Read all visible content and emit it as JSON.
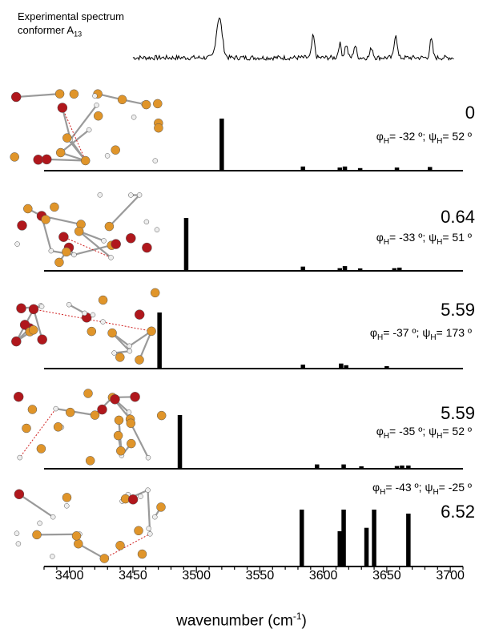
{
  "chart_data": {
    "type": "bar",
    "experimental": {
      "label_line1": "Experimental spectrum",
      "label_line2": "conformer A",
      "label_subscript": "13",
      "peaks": [
        {
          "x": 3518,
          "y": 1.0
        },
        {
          "x": 3592,
          "y": 0.55
        },
        {
          "x": 3613,
          "y": 0.35
        },
        {
          "x": 3618,
          "y": 0.32
        },
        {
          "x": 3625,
          "y": 0.3
        },
        {
          "x": 3638,
          "y": 0.25
        },
        {
          "x": 3657,
          "y": 0.6
        },
        {
          "x": 3685,
          "y": 0.45
        }
      ]
    },
    "panels": [
      {
        "energy": "0",
        "phi": "-32",
        "psi": "52",
        "bars": [
          {
            "x": 3520,
            "h": 1.0
          },
          {
            "x": 3584,
            "h": 0.08
          },
          {
            "x": 3613,
            "h": 0.06
          },
          {
            "x": 3617,
            "h": 0.08
          },
          {
            "x": 3629,
            "h": 0.05
          },
          {
            "x": 3658,
            "h": 0.06
          },
          {
            "x": 3684,
            "h": 0.07
          }
        ]
      },
      {
        "energy": "0.64",
        "phi": "-33",
        "psi": "51",
        "bars": [
          {
            "x": 3492,
            "h": 1.0
          },
          {
            "x": 3584,
            "h": 0.08
          },
          {
            "x": 3613,
            "h": 0.05
          },
          {
            "x": 3617,
            "h": 0.09
          },
          {
            "x": 3629,
            "h": 0.04
          },
          {
            "x": 3656,
            "h": 0.05
          },
          {
            "x": 3660,
            "h": 0.06
          }
        ]
      },
      {
        "energy": "5.59",
        "phi": "-37",
        "psi": "173",
        "bars": [
          {
            "x": 3471,
            "h": 1.0
          },
          {
            "x": 3584,
            "h": 0.07
          },
          {
            "x": 3614,
            "h": 0.09
          },
          {
            "x": 3618,
            "h": 0.06
          },
          {
            "x": 3650,
            "h": 0.04
          }
        ]
      },
      {
        "energy": "5.59",
        "phi": "-35",
        "psi": "52",
        "bars": [
          {
            "x": 3487,
            "h": 1.0
          },
          {
            "x": 3595,
            "h": 0.08
          },
          {
            "x": 3616,
            "h": 0.08
          },
          {
            "x": 3630,
            "h": 0.04
          },
          {
            "x": 3658,
            "h": 0.05
          },
          {
            "x": 3662,
            "h": 0.06
          },
          {
            "x": 3667,
            "h": 0.06
          }
        ]
      },
      {
        "energy": "6.52",
        "phi": "-43",
        "psi": "-25",
        "bars": [
          {
            "x": 3583,
            "h": 1.0
          },
          {
            "x": 3613,
            "h": 0.62
          },
          {
            "x": 3616,
            "h": 1.0
          },
          {
            "x": 3634,
            "h": 0.68
          },
          {
            "x": 3640,
            "h": 1.0
          },
          {
            "x": 3667,
            "h": 0.93
          }
        ]
      }
    ],
    "xlabel": "wavenumber (cm",
    "xlabel_sup": "-1",
    "xlabel_close": ")",
    "xlim": [
      3380,
      3710
    ],
    "xticks": [
      3400,
      3450,
      3500,
      3550,
      3600,
      3650,
      3700
    ],
    "bar_width_units": 3.5
  }
}
